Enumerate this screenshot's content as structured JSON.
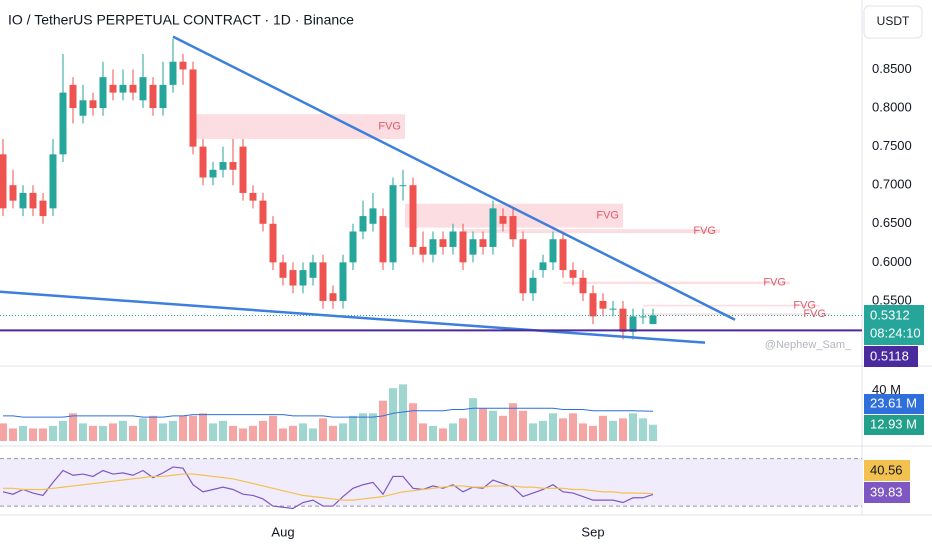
{
  "chart_data": [
    {
      "type": "candlestick",
      "title": "IO / TetherUS PERPETUAL CONTRACT · 1D · Binance",
      "currency": "USDT",
      "categories": [
        null,
        null,
        null,
        null,
        null,
        null,
        null,
        null,
        null,
        null,
        null,
        null,
        null,
        null,
        null,
        null,
        null,
        null,
        null,
        null,
        null,
        null,
        null,
        null,
        null,
        null,
        null,
        null,
        "Aug",
        null,
        null,
        null,
        null,
        null,
        null,
        null,
        null,
        null,
        null,
        null,
        null,
        null,
        null,
        null,
        null,
        null,
        null,
        null,
        null,
        null,
        null,
        null,
        null,
        null,
        null,
        null,
        null,
        null,
        null,
        "Sep",
        null,
        null,
        null,
        null,
        null,
        null
      ],
      "open": [
        0.74,
        0.7,
        0.67,
        0.69,
        0.68,
        0.67,
        0.74,
        0.83,
        0.79,
        0.81,
        0.8,
        0.83,
        0.82,
        0.83,
        0.81,
        0.83,
        0.8,
        0.83,
        0.86,
        0.85,
        0.75,
        0.71,
        0.72,
        0.73,
        0.75,
        0.69,
        0.68,
        0.65,
        0.6,
        0.59,
        0.57,
        0.58,
        0.6,
        0.56,
        0.55,
        0.6,
        0.64,
        0.65,
        0.66,
        0.6,
        0.7,
        0.7,
        0.62,
        0.61,
        0.63,
        0.62,
        0.64,
        0.61,
        0.63,
        0.62,
        0.66,
        0.66,
        0.63,
        0.56,
        0.59,
        0.6,
        0.63,
        0.59,
        0.58,
        0.56,
        0.55,
        0.54,
        0.54,
        0.51,
        0.53,
        0.52
      ],
      "high": [
        0.76,
        0.72,
        0.7,
        0.7,
        0.69,
        0.76,
        0.87,
        0.84,
        0.83,
        0.82,
        0.86,
        0.85,
        0.85,
        0.85,
        0.87,
        0.84,
        0.86,
        0.89,
        0.87,
        0.86,
        0.76,
        0.73,
        0.75,
        0.76,
        0.76,
        0.7,
        0.69,
        0.66,
        0.61,
        0.6,
        0.6,
        0.61,
        0.61,
        0.57,
        0.61,
        0.65,
        0.68,
        0.69,
        0.67,
        0.71,
        0.72,
        0.71,
        0.64,
        0.64,
        0.64,
        0.65,
        0.65,
        0.64,
        0.64,
        0.68,
        0.67,
        0.67,
        0.64,
        0.59,
        0.61,
        0.64,
        0.64,
        0.6,
        0.59,
        0.57,
        0.56,
        0.55,
        0.55,
        0.54,
        0.54,
        0.54
      ],
      "low": [
        0.66,
        0.67,
        0.66,
        0.66,
        0.65,
        0.66,
        0.73,
        0.78,
        0.78,
        0.79,
        0.79,
        0.81,
        0.81,
        0.81,
        0.8,
        0.79,
        0.79,
        0.82,
        0.83,
        0.74,
        0.7,
        0.7,
        0.71,
        0.7,
        0.68,
        0.67,
        0.64,
        0.59,
        0.57,
        0.56,
        0.56,
        0.57,
        0.54,
        0.54,
        0.54,
        0.59,
        0.63,
        0.64,
        0.59,
        0.59,
        0.68,
        0.61,
        0.6,
        0.6,
        0.61,
        0.61,
        0.59,
        0.6,
        0.61,
        0.61,
        0.64,
        0.62,
        0.55,
        0.55,
        0.58,
        0.59,
        0.58,
        0.57,
        0.55,
        0.52,
        0.53,
        0.53,
        0.5,
        0.5,
        0.52,
        0.52
      ],
      "close": [
        0.67,
        0.68,
        0.69,
        0.67,
        0.66,
        0.74,
        0.82,
        0.8,
        0.81,
        0.8,
        0.84,
        0.82,
        0.83,
        0.82,
        0.84,
        0.8,
        0.83,
        0.86,
        0.85,
        0.75,
        0.71,
        0.72,
        0.73,
        0.72,
        0.69,
        0.68,
        0.65,
        0.6,
        0.58,
        0.57,
        0.59,
        0.6,
        0.55,
        0.55,
        0.6,
        0.64,
        0.66,
        0.67,
        0.6,
        0.7,
        0.7,
        0.62,
        0.61,
        0.63,
        0.62,
        0.64,
        0.6,
        0.63,
        0.62,
        0.67,
        0.65,
        0.63,
        0.56,
        0.58,
        0.6,
        0.63,
        0.59,
        0.58,
        0.56,
        0.53,
        0.54,
        0.54,
        0.51,
        0.53,
        0.53,
        0.5312
      ],
      "up_color": "#26a69a",
      "down_color": "#ef5350",
      "ylim": [
        0.467,
        0.94
      ],
      "yticks": [
        {
          "value": 0.85,
          "label": "0.8500"
        },
        {
          "value": 0.8,
          "label": "0.8000"
        },
        {
          "value": 0.75,
          "label": "0.7500"
        },
        {
          "value": 0.7,
          "label": "0.7000"
        },
        {
          "value": 0.65,
          "label": "0.6500"
        },
        {
          "value": 0.6,
          "label": "0.6000"
        },
        {
          "value": 0.55,
          "label": "0.5500"
        }
      ],
      "last_price": 0.5312,
      "countdown": "08:24:10",
      "level": {
        "value": 0.5118,
        "color": "#4a2a9c"
      },
      "watermark": "@Nephew_Sam_",
      "trendlines": [
        {
          "x": [
            17,
            73.2
          ],
          "y": [
            0.8926,
            0.5257
          ],
          "color": "#3d7fdc"
        },
        {
          "x": [
            -0.3,
            70.2
          ],
          "y": [
            0.5619,
            0.496
          ],
          "color": "#3d7fdc"
        }
      ],
      "fvg": [
        {
          "label": "FVG",
          "x0": 19.2,
          "x1": 40.2,
          "top": 0.792,
          "bottom": 0.76
        },
        {
          "label": "FVG",
          "x0": 40.2,
          "x1": 62,
          "top": 0.676,
          "bottom": 0.645
        },
        {
          "label": "FVG",
          "x0": 46,
          "x1": 71.7,
          "top": 0.643,
          "bottom": 0.638
        },
        {
          "label": "FVG",
          "x0": 56,
          "x1": 78.7,
          "top": 0.575,
          "bottom": 0.572
        },
        {
          "label": "FVG",
          "x0": 64,
          "x1": 81.7,
          "top": 0.545,
          "bottom": 0.543
        },
        {
          "label": "FVG",
          "x0": 64,
          "x1": 82.7,
          "top": 0.534,
          "bottom": 0.532
        }
      ],
      "fvg_color": "#fbd5d9",
      "fvg_text_color": "#e0596a"
    },
    {
      "type": "volume",
      "values": [
        14,
        10,
        12,
        10,
        10,
        12,
        16,
        22,
        14,
        12,
        12,
        14,
        16,
        12,
        18,
        20,
        14,
        16,
        20,
        20,
        22,
        14,
        16,
        12,
        10,
        12,
        16,
        20,
        10,
        12,
        14,
        10,
        18,
        12,
        14,
        20,
        22,
        22,
        32,
        42,
        45,
        30,
        14,
        12,
        10,
        14,
        18,
        34,
        26,
        24,
        20,
        30,
        24,
        14,
        16,
        22,
        18,
        22,
        14,
        12,
        20,
        16,
        18,
        22,
        18,
        12.93
      ],
      "value_labels": [
        null,
        null,
        null,
        null,
        null,
        null,
        null,
        null,
        null,
        null,
        null,
        null,
        null,
        null,
        null,
        null,
        null,
        null,
        null,
        null,
        null,
        null,
        null,
        null,
        null,
        null,
        null,
        null,
        null,
        null,
        null,
        null,
        null,
        null,
        null,
        null,
        null,
        null,
        null,
        null,
        null,
        null,
        null,
        null,
        null,
        null,
        null,
        null,
        null,
        null,
        null,
        null,
        null,
        null,
        null,
        null,
        null,
        null,
        null,
        null,
        null,
        null,
        null,
        null,
        null,
        "12.93 M"
      ],
      "up_color": "#9fd6cf",
      "down_color": "#f5a6a4",
      "label_color": "#22a08a",
      "ma": {
        "color": "#2f6fdc",
        "values": [
          20,
          20,
          19,
          19,
          19,
          19,
          19,
          20,
          20,
          20,
          20,
          20,
          20,
          20,
          19,
          19,
          19,
          20,
          20,
          21,
          21,
          21,
          21,
          21,
          21,
          21,
          21,
          21,
          21,
          20,
          20,
          20,
          20,
          19,
          19,
          19,
          19,
          19,
          20,
          22,
          23,
          24,
          24,
          24,
          24,
          25,
          25,
          26,
          26,
          26,
          26,
          26,
          26,
          26,
          26,
          26,
          25,
          25,
          25,
          24,
          24,
          24,
          24,
          24,
          23.8,
          23.61
        ],
        "value_labels": [
          null,
          null,
          null,
          null,
          null,
          null,
          null,
          null,
          null,
          null,
          null,
          null,
          null,
          null,
          null,
          null,
          null,
          null,
          null,
          null,
          null,
          null,
          null,
          null,
          null,
          null,
          null,
          null,
          null,
          null,
          null,
          null,
          null,
          null,
          null,
          null,
          null,
          null,
          null,
          null,
          null,
          null,
          null,
          null,
          null,
          null,
          null,
          null,
          null,
          null,
          null,
          null,
          null,
          null,
          null,
          null,
          null,
          null,
          null,
          null,
          null,
          null,
          null,
          null,
          null,
          "23.61 M"
        ]
      },
      "ylim": [
        0,
        58
      ],
      "yticks": [
        {
          "value": 40,
          "label": "40 M"
        }
      ]
    },
    {
      "type": "line",
      "series": [
        {
          "color": "#7e57c2",
          "values": [
            42,
            40,
            44,
            41,
            39,
            50,
            60,
            56,
            57,
            55,
            60,
            57,
            58,
            56,
            60,
            54,
            58,
            63,
            62,
            48,
            42,
            44,
            46,
            44,
            40,
            39,
            36,
            30,
            29,
            28,
            33,
            35,
            30,
            30,
            38,
            45,
            48,
            50,
            40,
            55,
            55,
            45,
            44,
            47,
            45,
            48,
            42,
            46,
            45,
            52,
            49,
            46,
            38,
            41,
            44,
            48,
            42,
            41,
            38,
            35,
            35,
            35,
            33,
            37,
            37,
            39.83
          ]
        },
        {
          "color": "#f2c14e",
          "values": [
            45,
            45,
            44,
            44,
            44,
            45,
            46,
            47,
            48,
            49,
            50,
            51,
            52,
            53,
            54,
            55,
            55,
            56,
            57,
            57,
            56,
            55,
            54,
            53,
            51,
            49,
            47,
            45,
            43,
            41,
            39,
            38,
            37,
            36,
            35,
            35,
            36,
            37,
            38,
            40,
            42,
            43,
            44,
            45,
            46,
            47,
            47,
            46,
            46,
            47,
            47,
            47,
            46,
            46,
            45,
            45,
            45,
            44,
            44,
            43,
            42,
            42,
            41,
            41,
            40.8,
            40.56
          ]
        }
      ],
      "ylim": [
        25,
        79
      ],
      "bands": [
        70,
        30
      ],
      "band_fill": "#f1ecfb"
    }
  ]
}
